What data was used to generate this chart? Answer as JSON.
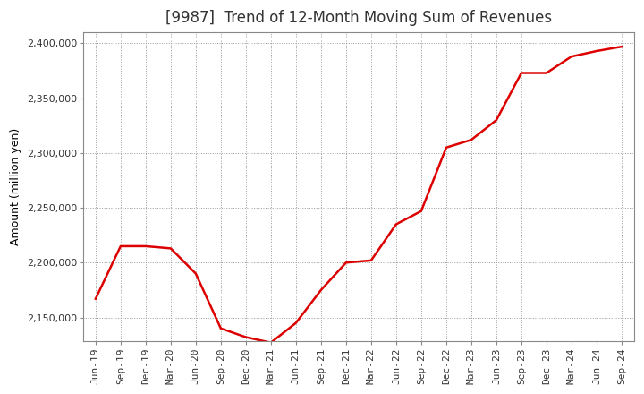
{
  "title": "[9987]  Trend of 12-Month Moving Sum of Revenues",
  "ylabel": "Amount (million yen)",
  "line_color": "#dd0000",
  "background_color": "#ffffff",
  "plot_bg_color": "#ffffff",
  "grid_color": "#999999",
  "ylim": [
    2128000,
    2410000
  ],
  "yticks": [
    2150000,
    2200000,
    2250000,
    2300000,
    2350000,
    2400000
  ],
  "x_labels": [
    "Jun-19",
    "Sep-19",
    "Dec-19",
    "Mar-20",
    "Jun-20",
    "Sep-20",
    "Dec-20",
    "Mar-21",
    "Jun-21",
    "Sep-21",
    "Dec-21",
    "Mar-22",
    "Jun-22",
    "Sep-22",
    "Dec-22",
    "Mar-23",
    "Jun-23",
    "Sep-23",
    "Dec-23",
    "Mar-24",
    "Jun-24",
    "Sep-24"
  ],
  "values": [
    2167000,
    2215000,
    2215000,
    2213000,
    2190000,
    2140000,
    2132000,
    2127000,
    2145000,
    2175000,
    2200000,
    2202000,
    2235000,
    2247000,
    2305000,
    2312000,
    2330000,
    2373000,
    2373000,
    2388000,
    2393000,
    2397000
  ],
  "title_fontsize": 12,
  "tick_fontsize": 8,
  "ylabel_fontsize": 9,
  "line_width": 1.8
}
